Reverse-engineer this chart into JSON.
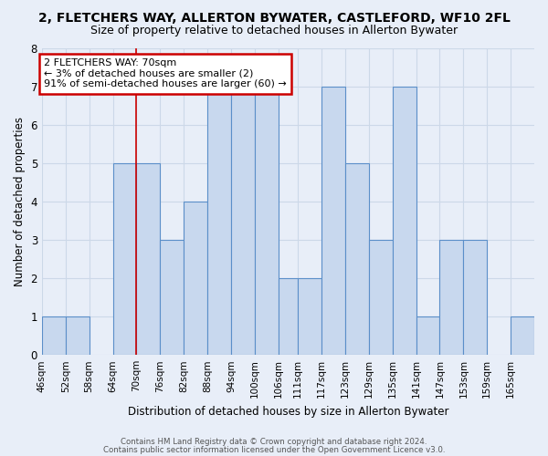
{
  "title": "2, FLETCHERS WAY, ALLERTON BYWATER, CASTLEFORD, WF10 2FL",
  "subtitle": "Size of property relative to detached houses in Allerton Bywater",
  "xlabel": "Distribution of detached houses by size in Allerton Bywater",
  "ylabel": "Number of detached properties",
  "bin_edges": [
    46,
    52,
    58,
    64,
    70,
    76,
    82,
    88,
    94,
    100,
    106,
    111,
    117,
    123,
    129,
    135,
    141,
    147,
    153,
    159,
    165,
    171
  ],
  "bin_labels": [
    46,
    52,
    58,
    64,
    70,
    76,
    82,
    88,
    94,
    100,
    106,
    111,
    117,
    123,
    129,
    135,
    141,
    147,
    153,
    159,
    165
  ],
  "heights": [
    1,
    1,
    0,
    5,
    5,
    3,
    4,
    7,
    7,
    7,
    2,
    2,
    7,
    5,
    3,
    7,
    1,
    3,
    3,
    0,
    1
  ],
  "bar_color": "#c8d8ee",
  "bar_edge_color": "#5b8fc9",
  "property_line_x": 70,
  "property_line_color": "#cc0000",
  "annotation_text": "2 FLETCHERS WAY: 70sqm\n← 3% of detached houses are smaller (2)\n91% of semi-detached houses are larger (60) →",
  "annotation_box_edge_color": "#cc0000",
  "annotation_box_face_color": "#ffffff",
  "ylim": [
    0,
    8
  ],
  "yticks": [
    0,
    1,
    2,
    3,
    4,
    5,
    6,
    7,
    8
  ],
  "grid_color": "#ccd8e8",
  "background_color": "#e8eef8",
  "footer_line1": "Contains HM Land Registry data © Crown copyright and database right 2024.",
  "footer_line2": "Contains public sector information licensed under the Open Government Licence v3.0.",
  "title_fontsize": 10,
  "subtitle_fontsize": 9
}
